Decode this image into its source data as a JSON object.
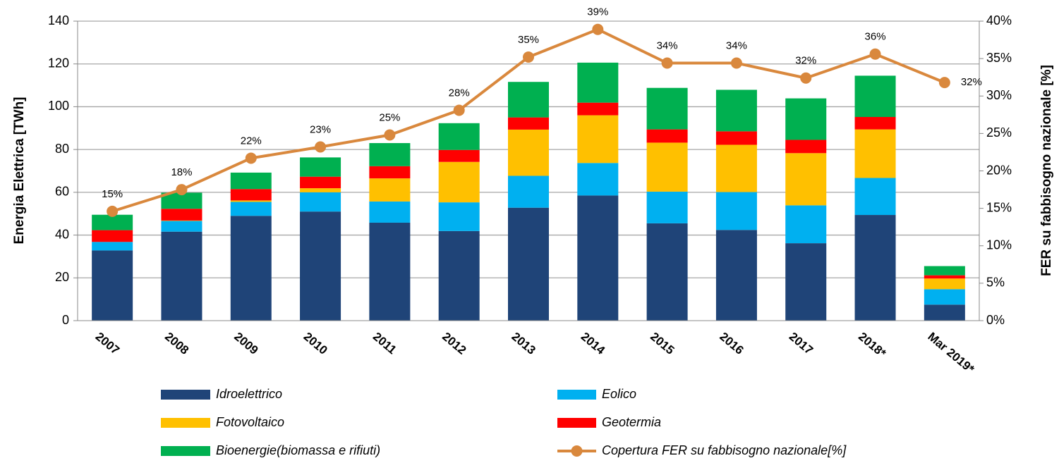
{
  "chart_data": {
    "type": "bar",
    "categories": [
      "2007",
      "2008",
      "2009",
      "2010",
      "2011",
      "2012",
      "2013",
      "2014",
      "2015",
      "2016",
      "2017",
      "2018*",
      "Mar 2019*"
    ],
    "ylabel": "Energia Elettrica [TWh]",
    "y2label": "FER su fabbisogno nazionale [%]",
    "ylim": [
      0,
      140
    ],
    "yticks": [
      0,
      20,
      40,
      60,
      80,
      100,
      120,
      140
    ],
    "y2lim": [
      0,
      40
    ],
    "y2ticks": [
      {
        "value": 0,
        "label": "0%"
      },
      {
        "value": 5,
        "label": "5%"
      },
      {
        "value": 10,
        "label": "10%"
      },
      {
        "value": 15,
        "label": "15%"
      },
      {
        "value": 20,
        "label": "20%"
      },
      {
        "value": 25,
        "label": "25%"
      },
      {
        "value": 30,
        "label": "30%"
      },
      {
        "value": 35,
        "label": "35%"
      },
      {
        "value": 40,
        "label": "40%"
      }
    ],
    "grid": true,
    "stacked": true,
    "series": [
      {
        "name": "Idroelettrico",
        "color": "#1f4478",
        "values": [
          32.8,
          41.6,
          49.0,
          51.0,
          45.8,
          41.9,
          52.8,
          58.5,
          45.5,
          42.4,
          36.2,
          49.4,
          7.5
        ]
      },
      {
        "name": "Eolico",
        "color": "#00b0f0",
        "values": [
          4.0,
          5.0,
          6.5,
          9.0,
          9.9,
          13.4,
          14.9,
          15.2,
          14.8,
          17.7,
          17.7,
          17.3,
          7.2
        ]
      },
      {
        "name": "Fotovoltaico",
        "color": "#ffc000",
        "values": [
          0.0,
          0.2,
          0.7,
          1.9,
          10.8,
          18.9,
          21.6,
          22.3,
          22.9,
          22.1,
          24.4,
          22.7,
          5.0
        ]
      },
      {
        "name": "Geotermia",
        "color": "#ff0000",
        "values": [
          5.5,
          5.5,
          5.3,
          5.4,
          5.7,
          5.6,
          5.7,
          5.9,
          6.2,
          6.3,
          6.2,
          5.8,
          1.5
        ]
      },
      {
        "name": "Bioenergie(biomassa e rifiuti)",
        "color": "#00b050",
        "values": [
          7.2,
          7.5,
          7.7,
          9.0,
          10.8,
          12.5,
          16.6,
          18.7,
          19.4,
          19.4,
          19.4,
          19.3,
          4.3
        ]
      },
      {
        "name": "Copertura FER su fabbisogno nazionale[%]",
        "color": "#d9883d",
        "axis": "y2",
        "type": "line",
        "values": [
          14.6,
          17.5,
          21.7,
          23.2,
          24.8,
          28.1,
          35.2,
          38.9,
          34.4,
          34.4,
          32.4,
          35.6,
          31.8
        ],
        "value_labels": [
          "15%",
          "18%",
          "22%",
          "23%",
          "25%",
          "28%",
          "35%",
          "39%",
          "34%",
          "34%",
          "32%",
          "36%",
          "32%"
        ]
      }
    ]
  }
}
